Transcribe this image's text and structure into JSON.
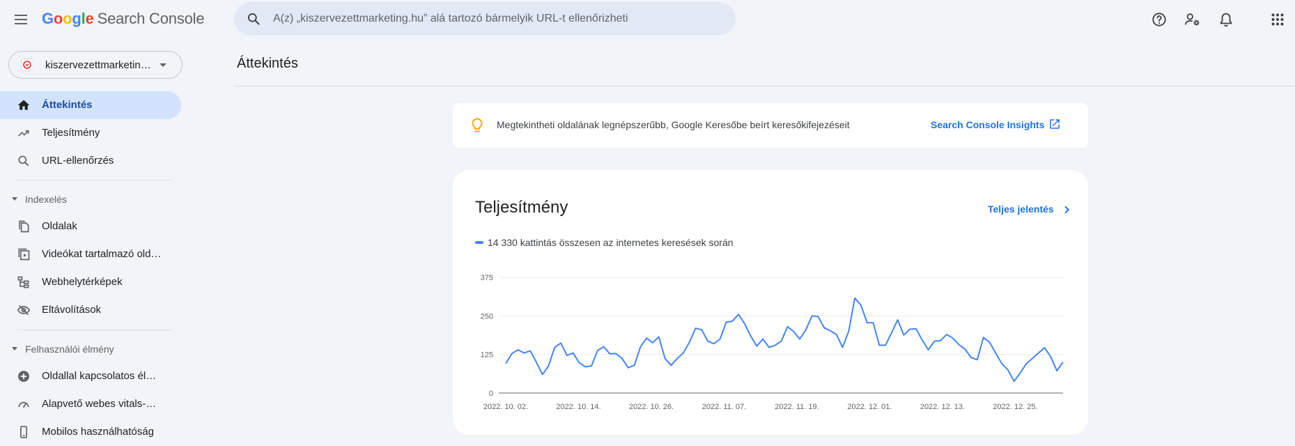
{
  "header": {
    "logo_letters": [
      "G",
      "o",
      "o",
      "g",
      "l",
      "e"
    ],
    "product": "Search Console",
    "search_placeholder": "A(z) „kiszervezettmarketing.hu” alá tartozó bármelyik URL-t ellenőrizheti",
    "icons": [
      "menu-icon",
      "help-icon",
      "manage-account-icon",
      "notifications-icon",
      "apps-icon"
    ]
  },
  "property": {
    "label": "kiszervezettmarketing.hu"
  },
  "sidebar": {
    "items": [
      {
        "label": "Áttekintés",
        "icon": "home-icon",
        "active": true
      },
      {
        "label": "Teljesítmény",
        "icon": "trending-icon"
      },
      {
        "label": "URL-ellenőrzés",
        "icon": "search-icon"
      }
    ],
    "sections": [
      {
        "label": "Indexelés",
        "items": [
          {
            "label": "Oldalak",
            "icon": "pages-icon"
          },
          {
            "label": "Videókat tartalmazó oldalak",
            "icon": "video-icon"
          },
          {
            "label": "Webhelytérképek",
            "icon": "sitemap-icon"
          },
          {
            "label": "Eltávolítások",
            "icon": "visibility-off-icon"
          }
        ]
      },
      {
        "label": "Felhasználói élmény",
        "items": [
          {
            "label": "Oldallal kapcsolatos élmény",
            "icon": "add-circle-icon"
          },
          {
            "label": "Alapvető webes vitals-mutatók",
            "icon": "speed-icon"
          },
          {
            "label": "Mobilos használhatóság",
            "icon": "phone-icon"
          }
        ]
      }
    ]
  },
  "main": {
    "page_title": "Áttekintés",
    "insight": {
      "text": "Megtekintheti oldalának legnépszerűbb, Google Keresőbe beírt keresőkifejezéseit",
      "link": "Search Console Insights"
    },
    "performance": {
      "title": "Teljesítmény",
      "full_report": "Teljes jelentés",
      "legend": "14 330 kattintás összesen az internetes keresések során"
    }
  },
  "colors": {
    "accent": "#1a73e8",
    "series": "#4285f4",
    "active_nav": "#d3e3fd",
    "background": "#f1f4f9"
  },
  "chart_data": {
    "type": "line",
    "ylim": [
      0,
      375
    ],
    "yticks": [
      0,
      125,
      250,
      375
    ],
    "xticks": [
      "2022. 10. 02.",
      "2022. 10. 14.",
      "2022. 10. 26.",
      "2022. 11. 07.",
      "2022. 11. 19.",
      "2022. 12. 01.",
      "2022. 12. 13.",
      "2022. 12. 25."
    ],
    "series": [
      {
        "name": "",
        "values": [
          95,
          128,
          140,
          130,
          137,
          100,
          60,
          88,
          148,
          162,
          122,
          130,
          98,
          85,
          88,
          138,
          150,
          127,
          128,
          112,
          82,
          90,
          150,
          178,
          163,
          182,
          112,
          90,
          112,
          130,
          165,
          210,
          205,
          168,
          160,
          175,
          230,
          233,
          255,
          225,
          185,
          152,
          175,
          148,
          155,
          168,
          215,
          200,
          175,
          205,
          250,
          248,
          212,
          202,
          190,
          148,
          200,
          308,
          285,
          228,
          228,
          155,
          155,
          195,
          237,
          188,
          207,
          208,
          172,
          140,
          168,
          170,
          190,
          178,
          157,
          142,
          115,
          108,
          180,
          165,
          130,
          95,
          75,
          38,
          65,
          95,
          112,
          130,
          147,
          117,
          72,
          100
        ]
      }
    ]
  }
}
